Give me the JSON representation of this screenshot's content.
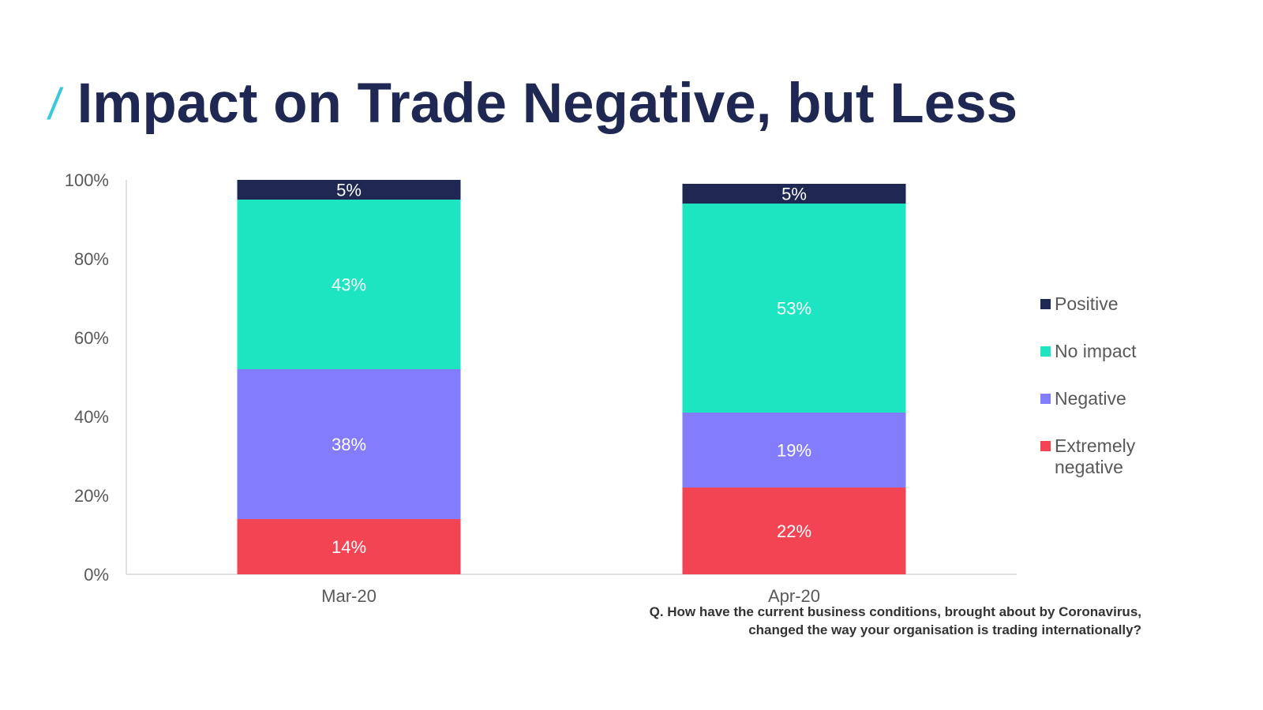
{
  "slide": {
    "slash": "/",
    "title": "Impact on Trade Negative, but Less",
    "question_line1": "Q. How have the current business conditions, brought about by Coronavirus,",
    "question_line2": "changed the way your organisation is trading internationally?"
  },
  "chart_data": {
    "type": "bar",
    "stacked": true,
    "categories": [
      "Mar-20",
      "Apr-20"
    ],
    "series": [
      {
        "name": "Extremely negative",
        "legend_label": "Extremely negative",
        "color": "#f34453",
        "values": [
          14,
          22
        ],
        "labels": [
          "14%",
          "22%"
        ]
      },
      {
        "name": "Negative",
        "legend_label": "Negative",
        "color": "#837dfe",
        "values": [
          38,
          19
        ],
        "labels": [
          "38%",
          "19%"
        ]
      },
      {
        "name": "No impact",
        "legend_label": "No impact",
        "color": "#1de5c1",
        "values": [
          43,
          53
        ],
        "labels": [
          "43%",
          "53%"
        ]
      },
      {
        "name": "Positive",
        "legend_label": "Positive",
        "color": "#1f2753",
        "values": [
          5,
          5
        ],
        "labels": [
          "5%",
          "5%"
        ]
      }
    ],
    "legend_order": [
      "Positive",
      "No impact",
      "Negative",
      "Extremely negative"
    ],
    "y_ticks": [
      "0%",
      "20%",
      "40%",
      "60%",
      "80%",
      "100%"
    ],
    "ylim": [
      0,
      100
    ],
    "xlabel": "",
    "ylabel": "",
    "grid": false,
    "legend_position": "right"
  }
}
